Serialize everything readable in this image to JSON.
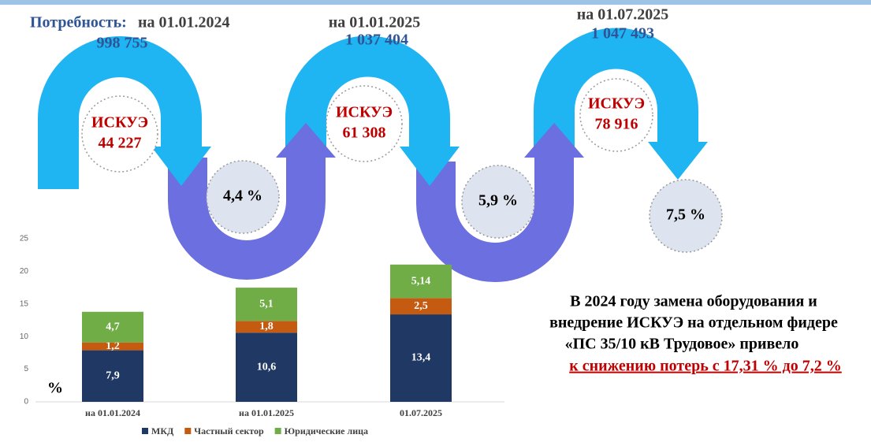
{
  "header": {
    "label": "Потребность:"
  },
  "stages": [
    {
      "date": "на 01.01.2024",
      "need": "998 755",
      "iskue_label": "ИСКУЭ",
      "iskue_value": "44 227",
      "percent": "4,4 %"
    },
    {
      "date": "на 01.01.2025",
      "need": "1 037 404",
      "iskue_label": "ИСКУЭ",
      "iskue_value": "61 308",
      "percent": "5,9 %"
    },
    {
      "date": "на 01.07.2025",
      "need": "1 047 493",
      "iskue_label": "ИСКУЭ",
      "iskue_value": "78 916",
      "percent": "7,5 %"
    }
  ],
  "chart_data": {
    "type": "stacked_bar",
    "y_label": "%",
    "categories": [
      "на 01.01.2024",
      "на 01.01.2025",
      "01.07.2025"
    ],
    "series": [
      {
        "name": "МКД",
        "color": "#1f3864",
        "values": [
          7.9,
          10.6,
          13.4
        ],
        "value_labels": [
          "7,9",
          "10,6",
          "13,4"
        ]
      },
      {
        "name": "Частный сектор",
        "color": "#c55a11",
        "values": [
          1.2,
          1.8,
          2.5
        ],
        "value_labels": [
          "1,2",
          "1,8",
          "2,5"
        ]
      },
      {
        "name": "Юридические лица",
        "color": "#70ad47",
        "values": [
          4.7,
          5.1,
          5.14
        ],
        "value_labels": [
          "4,7",
          "5,1",
          "5,14"
        ]
      }
    ],
    "ylim": [
      0,
      25
    ],
    "yticks": [
      0,
      5,
      10,
      15,
      20,
      25
    ],
    "grid": false,
    "legend": "bottom"
  },
  "note": {
    "lines": [
      "В 2024 году замена оборудования и",
      "внедрение ИСКУЭ на отдельном фидере",
      "«ПС 35/10 кВ Трудовое» привело"
    ],
    "highlight": "к снижению потерь с 17,31 % до 7,2 %"
  }
}
